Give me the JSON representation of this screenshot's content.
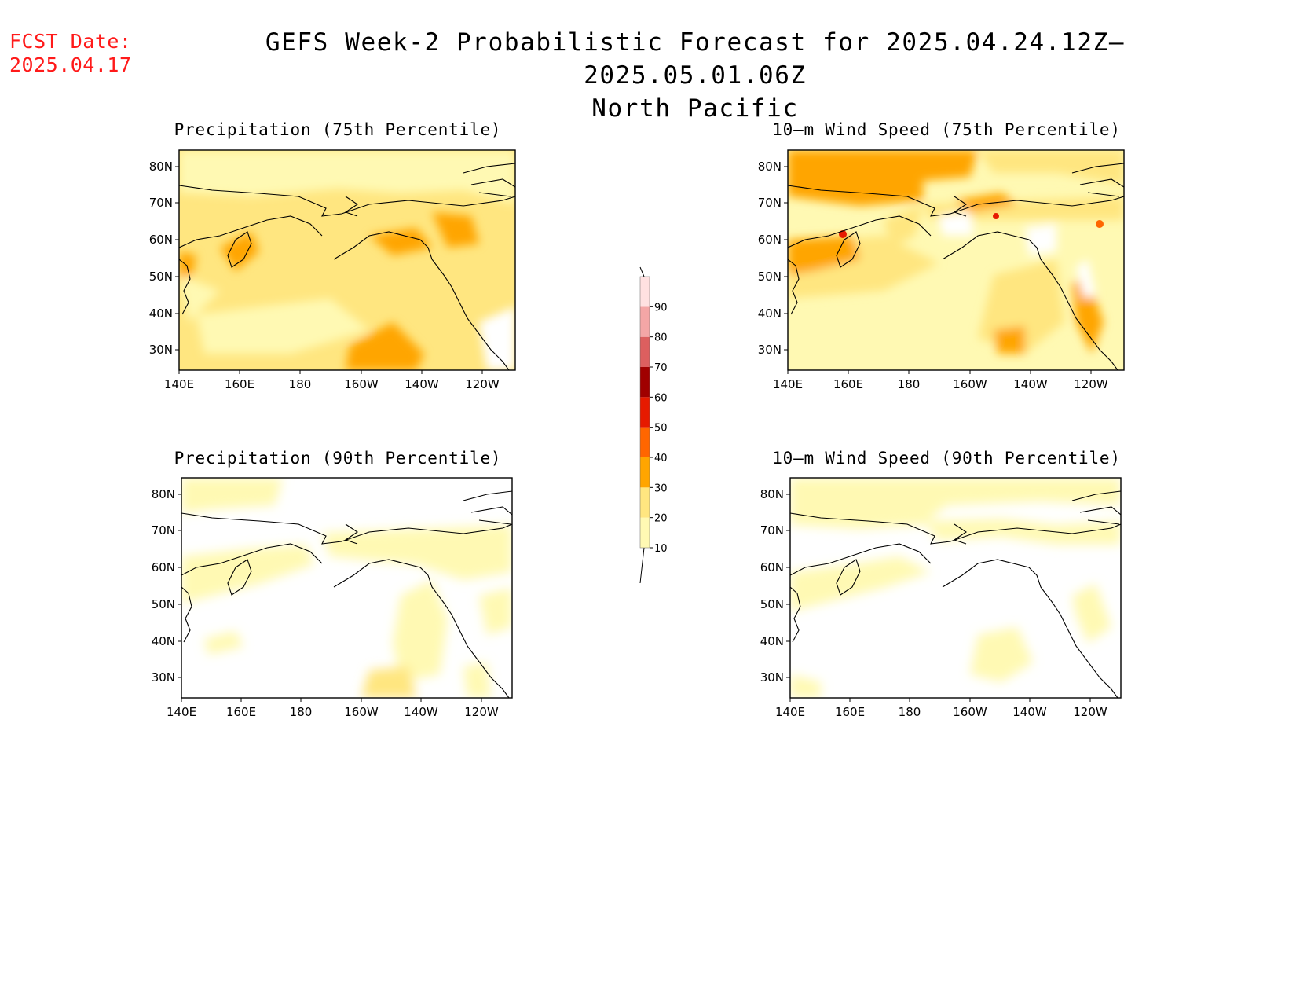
{
  "fcst": {
    "label": "FCST Date:",
    "date": "2025.04.17"
  },
  "header": {
    "title": "GEFS Week-2 Probabilistic Forecast for 2025.04.24.12Z–2025.05.01.06Z",
    "subtitle": "North Pacific"
  },
  "axes": {
    "lat_labels": [
      "80N",
      "70N",
      "60N",
      "50N",
      "40N",
      "30N"
    ],
    "lon_labels": [
      "140E",
      "160E",
      "180",
      "160W",
      "140W",
      "120W"
    ],
    "lat_range": [
      25,
      85
    ],
    "lon_range": [
      "140E",
      "110W"
    ]
  },
  "panels": [
    {
      "title": "Precipitation (75th Percentile)"
    },
    {
      "title": "10–m Wind Speed (75th Percentile)"
    },
    {
      "title": "Precipitation (90th Percentile)"
    },
    {
      "title": "10–m Wind Speed (90th Percentile)"
    }
  ],
  "colorbar": {
    "levels": [
      "10",
      "20",
      "30",
      "40",
      "50",
      "60",
      "70",
      "80",
      "90"
    ],
    "colors": [
      "#fff9b3",
      "#ffe680",
      "#ffa500",
      "#ff6600",
      "#e61a00",
      "#a00000",
      "#dc5f5f",
      "#f4a6a6",
      "#ffe1e1"
    ]
  }
}
